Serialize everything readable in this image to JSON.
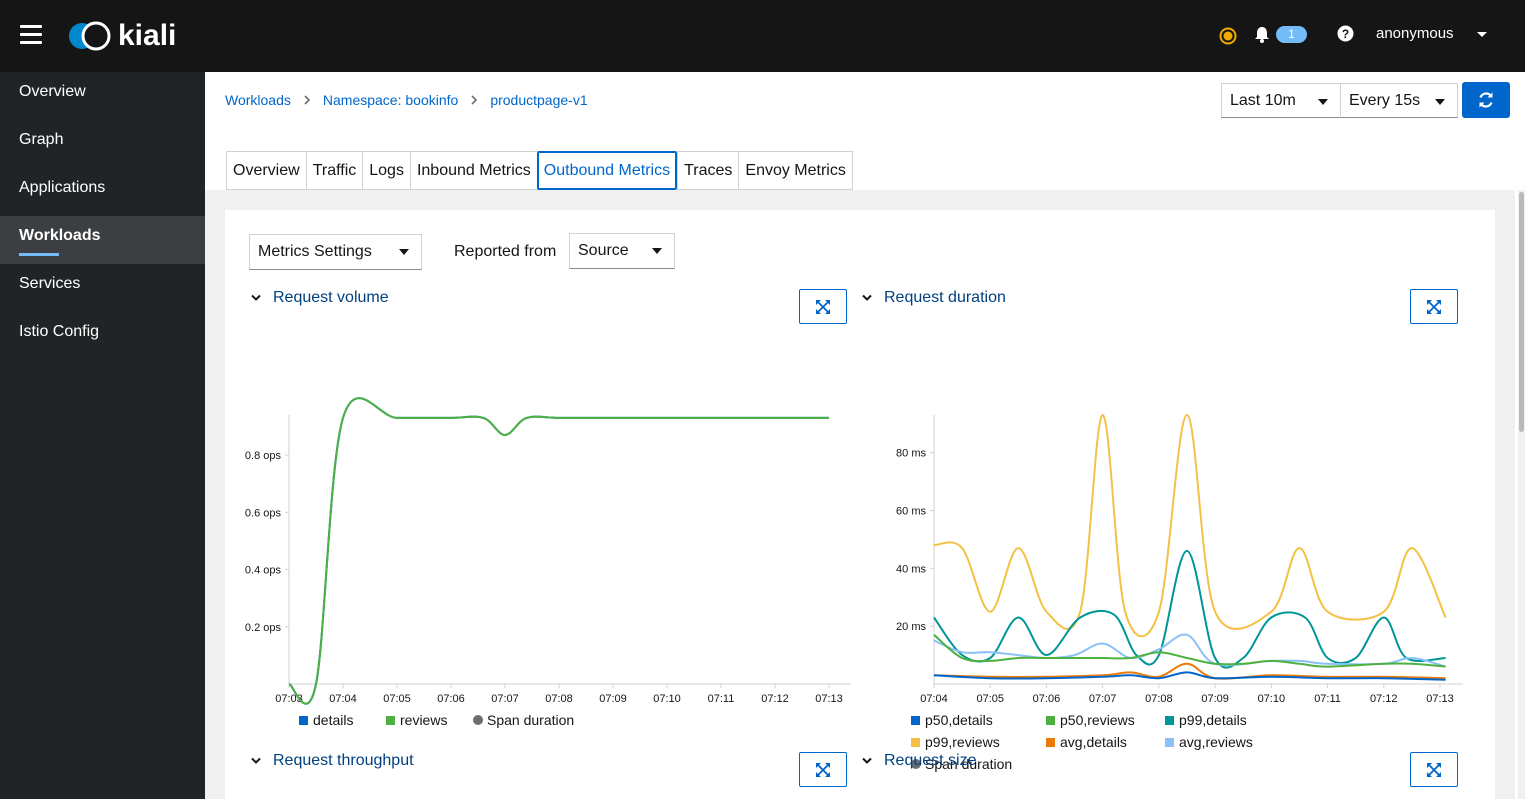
{
  "header": {
    "app_name": "kiali",
    "notification_count": "1",
    "user": "anonymous",
    "colors": {
      "bg": "#151515",
      "status": "#f0ab00",
      "badge": "#73bcf7"
    }
  },
  "sidebar": {
    "items": [
      {
        "label": "Overview",
        "active": false
      },
      {
        "label": "Graph",
        "active": false
      },
      {
        "label": "Applications",
        "active": false
      },
      {
        "label": "Workloads",
        "active": true
      },
      {
        "label": "Services",
        "active": false
      },
      {
        "label": "Istio Config",
        "active": false
      }
    ]
  },
  "breadcrumb": [
    "Workloads",
    "Namespace: bookinfo",
    "productpage-v1"
  ],
  "toolbar": {
    "time_range": "Last 10m",
    "refresh_interval": "Every 15s"
  },
  "tabs": [
    "Overview",
    "Traffic",
    "Logs",
    "Inbound Metrics",
    "Outbound Metrics",
    "Traces",
    "Envoy Metrics"
  ],
  "active_tab": "Outbound Metrics",
  "controls": {
    "metrics_settings": "Metrics Settings",
    "reported_from_label": "Reported from",
    "reported_from_value": "Source"
  },
  "charts": {
    "lower_titles": [
      "Request throughput",
      "Request size"
    ]
  },
  "chart_data": [
    {
      "type": "line",
      "title": "Request volume",
      "x": [
        "07:03",
        "07:04",
        "07:05",
        "07:06",
        "07:07",
        "07:08",
        "07:09",
        "07:10",
        "07:11",
        "07:12",
        "07:13"
      ],
      "yticks": [
        "0.2 ops",
        "0.4 ops",
        "0.6 ops",
        "0.8 ops"
      ],
      "ylim": [
        0,
        0.94
      ],
      "legend": [
        {
          "name": "details",
          "color": "#0066cc",
          "marker": "square"
        },
        {
          "name": "reviews",
          "color": "#4cb140",
          "marker": "square"
        },
        {
          "name": "Span duration",
          "color": "#6a6e73",
          "marker": "circle"
        }
      ],
      "series": [
        {
          "name": "details",
          "color": "#0066cc",
          "points": [
            [
              0,
              0
            ],
            [
              0.5,
              0
            ],
            [
              1,
              0.93
            ],
            [
              2,
              0.93
            ],
            [
              3,
              0.93
            ],
            [
              3.6,
              0.93
            ],
            [
              4,
              0.87
            ],
            [
              4.4,
              0.93
            ],
            [
              5,
              0.93
            ],
            [
              6,
              0.93
            ],
            [
              7,
              0.93
            ],
            [
              8,
              0.93
            ],
            [
              9,
              0.93
            ],
            [
              10,
              0.93
            ]
          ]
        },
        {
          "name": "reviews",
          "color": "#4cb140",
          "points": [
            [
              0,
              0
            ],
            [
              0.5,
              0
            ],
            [
              1,
              0.93
            ],
            [
              2,
              0.93
            ],
            [
              3,
              0.93
            ],
            [
              3.6,
              0.93
            ],
            [
              4,
              0.87
            ],
            [
              4.4,
              0.93
            ],
            [
              5,
              0.93
            ],
            [
              6,
              0.93
            ],
            [
              7,
              0.93
            ],
            [
              8,
              0.93
            ],
            [
              9,
              0.93
            ],
            [
              10,
              0.93
            ]
          ]
        }
      ]
    },
    {
      "type": "line",
      "title": "Request duration",
      "x": [
        "07:04",
        "07:05",
        "07:06",
        "07:07",
        "07:08",
        "07:09",
        "07:10",
        "07:11",
        "07:12",
        "07:13"
      ],
      "yticks": [
        "20 ms",
        "40 ms",
        "60 ms",
        "80 ms"
      ],
      "ylim": [
        0,
        93
      ],
      "legend": [
        {
          "name": "p50,details",
          "color": "#0066cc",
          "marker": "square"
        },
        {
          "name": "p50,reviews",
          "color": "#4cb140",
          "marker": "square"
        },
        {
          "name": "p99,details",
          "color": "#009596",
          "marker": "square"
        },
        {
          "name": "p99,reviews",
          "color": "#f4c145",
          "marker": "square"
        },
        {
          "name": "avg,details",
          "color": "#ec7a08",
          "marker": "square"
        },
        {
          "name": "avg,reviews",
          "color": "#8bc1f7",
          "marker": "square"
        },
        {
          "name": "Span duration",
          "color": "#6a6e73",
          "marker": "circle"
        }
      ],
      "series": [
        {
          "name": "p99,reviews",
          "color": "#f4c145",
          "points": [
            [
              0,
              48
            ],
            [
              0.5,
              47
            ],
            [
              1,
              25
            ],
            [
              1.5,
              47
            ],
            [
              2,
              25
            ],
            [
              2.6,
              25
            ],
            [
              3,
              93
            ],
            [
              3.4,
              25
            ],
            [
              4,
              25
            ],
            [
              4.5,
              93
            ],
            [
              5,
              25
            ],
            [
              6,
              25
            ],
            [
              6.5,
              47
            ],
            [
              7,
              25
            ],
            [
              8,
              25
            ],
            [
              8.5,
              47
            ],
            [
              9.1,
              23
            ]
          ]
        },
        {
          "name": "p99,details",
          "color": "#009596",
          "points": [
            [
              0,
              23
            ],
            [
              0.5,
              10
            ],
            [
              1,
              9
            ],
            [
              1.5,
              23
            ],
            [
              2,
              10
            ],
            [
              2.6,
              23
            ],
            [
              3.2,
              24
            ],
            [
              3.6,
              10
            ],
            [
              4,
              10
            ],
            [
              4.5,
              46
            ],
            [
              5,
              9
            ],
            [
              5.5,
              9
            ],
            [
              6,
              23
            ],
            [
              6.6,
              23
            ],
            [
              7,
              9
            ],
            [
              7.5,
              9
            ],
            [
              8,
              23
            ],
            [
              8.4,
              9
            ],
            [
              9.1,
              9
            ]
          ]
        },
        {
          "name": "avg,reviews",
          "color": "#8bc1f7",
          "points": [
            [
              0,
              15
            ],
            [
              0.5,
              11
            ],
            [
              1,
              11
            ],
            [
              1.5,
              10
            ],
            [
              2,
              9
            ],
            [
              2.5,
              10
            ],
            [
              3,
              14
            ],
            [
              3.5,
              9
            ],
            [
              4,
              12
            ],
            [
              4.5,
              17
            ],
            [
              5,
              7
            ],
            [
              6,
              8
            ],
            [
              6.5,
              8
            ],
            [
              7,
              7
            ],
            [
              8,
              7
            ],
            [
              8.5,
              9
            ],
            [
              9.1,
              6
            ]
          ]
        },
        {
          "name": "p50,reviews",
          "color": "#4cb140",
          "points": [
            [
              0,
              17
            ],
            [
              0.5,
              9
            ],
            [
              1,
              8
            ],
            [
              1.5,
              9
            ],
            [
              2,
              9
            ],
            [
              2.5,
              9
            ],
            [
              3,
              9
            ],
            [
              3.5,
              9
            ],
            [
              4,
              11
            ],
            [
              4.5,
              9
            ],
            [
              5,
              7
            ],
            [
              5.5,
              7
            ],
            [
              6,
              8
            ],
            [
              6.5,
              7
            ],
            [
              7,
              6
            ],
            [
              8,
              7
            ],
            [
              8.5,
              7
            ],
            [
              9.1,
              6
            ]
          ]
        },
        {
          "name": "avg,details",
          "color": "#ec7a08",
          "points": [
            [
              0,
              3
            ],
            [
              1,
              2.5
            ],
            [
              2,
              2.5
            ],
            [
              3,
              3
            ],
            [
              3.5,
              4
            ],
            [
              4,
              2.5
            ],
            [
              4.5,
              7
            ],
            [
              5,
              2
            ],
            [
              6,
              3
            ],
            [
              7,
              2.5
            ],
            [
              8,
              2.5
            ],
            [
              9.1,
              2
            ]
          ]
        },
        {
          "name": "p50,details",
          "color": "#0066cc",
          "points": [
            [
              0,
              3
            ],
            [
              1,
              2
            ],
            [
              2,
              2
            ],
            [
              3,
              2.5
            ],
            [
              3.5,
              3
            ],
            [
              4,
              2
            ],
            [
              4.5,
              4
            ],
            [
              5,
              2
            ],
            [
              6,
              2.5
            ],
            [
              7,
              2
            ],
            [
              8,
              2
            ],
            [
              9.1,
              1.5
            ]
          ]
        }
      ]
    }
  ]
}
